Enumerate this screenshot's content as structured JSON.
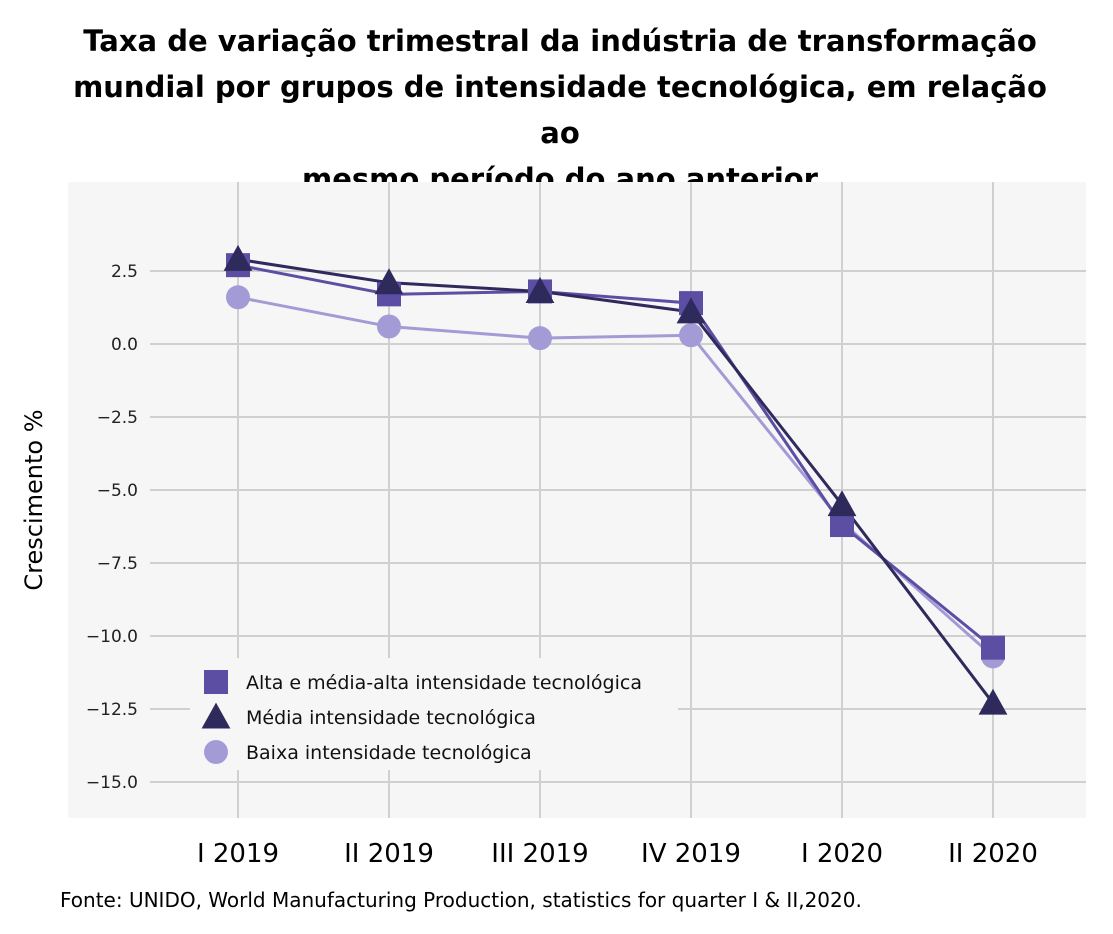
{
  "title_lines": [
    "Taxa de variação trimestral da indústria de transformação",
    "mundial por grupos de intensidade tecnológica, em relação ao",
    "mesmo período do ano anterior"
  ],
  "source": "Fonte: UNIDO, World Manufacturing Production, statistics for quarter I & II,2020.",
  "chart_data": {
    "type": "line",
    "title": "Taxa de variação trimestral da indústria de transformação mundial por grupos de intensidade tecnológica, em relação ao mesmo período do ano anterior",
    "xlabel": "",
    "ylabel": "Crescimento %",
    "categories": [
      "I 2019",
      "II 2019",
      "III 2019",
      "IV 2019",
      "I 2020",
      "II 2020"
    ],
    "yticks": [
      2.5,
      0.0,
      -2.5,
      -5.0,
      -7.5,
      -10.0,
      -12.5,
      -15.0
    ],
    "ytick_labels": [
      "2.5",
      "0.0",
      "−2.5",
      "−5.0",
      "−7.5",
      "−10.0",
      "−12.5",
      "−15.0"
    ],
    "ylim": [
      -16.0,
      5.6
    ],
    "grid": true,
    "legend_position": "bottom-left",
    "series": [
      {
        "name": "Alta e média-alta intensidade tecnológica",
        "marker": "square",
        "color": "#5b4ea3",
        "values": [
          2.7,
          1.7,
          1.8,
          1.4,
          -6.2,
          -10.4
        ]
      },
      {
        "name": "Média intensidade tecnológica",
        "marker": "triangle",
        "color": "#2e2a5c",
        "values": [
          2.9,
          2.1,
          1.8,
          1.1,
          -5.5,
          -12.3
        ]
      },
      {
        "name": "Baixa intensidade tecnológica",
        "marker": "circle",
        "color": "#a29bd6",
        "values": [
          1.6,
          0.6,
          0.2,
          0.3,
          -6.1,
          -10.7
        ]
      }
    ]
  }
}
